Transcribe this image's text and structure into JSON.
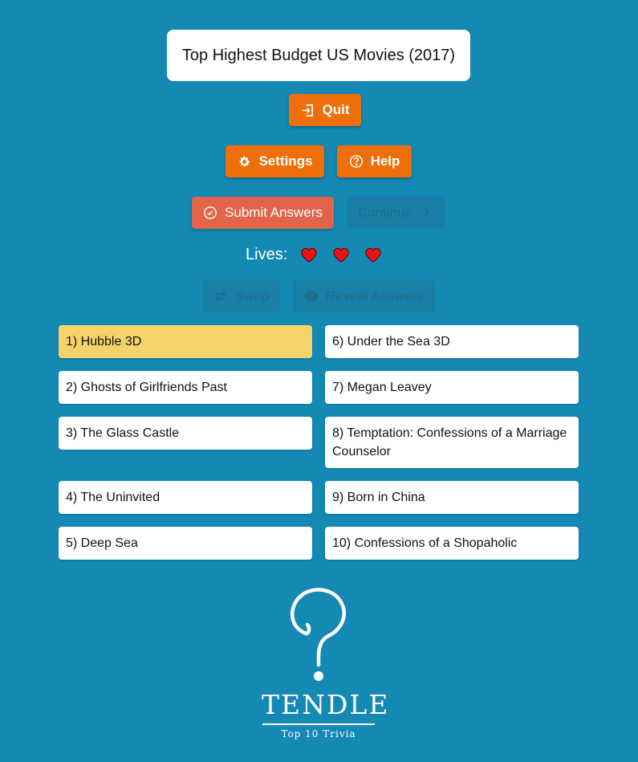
{
  "game": {
    "title": "Top Highest Budget US Movies (2017)"
  },
  "buttons": {
    "quit": "Quit",
    "settings": "Settings",
    "help": "Help",
    "submit": "Submit Answers",
    "continue": "Continue",
    "swap": "Swap",
    "reveal": "Reveal Answers"
  },
  "lives": {
    "label": "Lives:",
    "count": 3
  },
  "answers": [
    "1) Hubble 3D",
    "2) Ghosts of Girlfriends Past",
    "3) The Glass Castle",
    "4) The Uninvited",
    "5) Deep Sea",
    "6) Under the Sea 3D",
    "7) Megan Leavey",
    "8) Temptation: Confessions of a Marriage Counselor",
    "9) Born in China",
    "10) Confessions of a Shopaholic"
  ],
  "logo": {
    "name": "TENDLE",
    "tagline": "Top 10 Trivia"
  },
  "colors": {
    "background": "#1389b4",
    "primary_button": "#ee6f0a",
    "submit_button": "#e2644a",
    "highlight": "#f5d36a",
    "heart": "#e8141c"
  }
}
